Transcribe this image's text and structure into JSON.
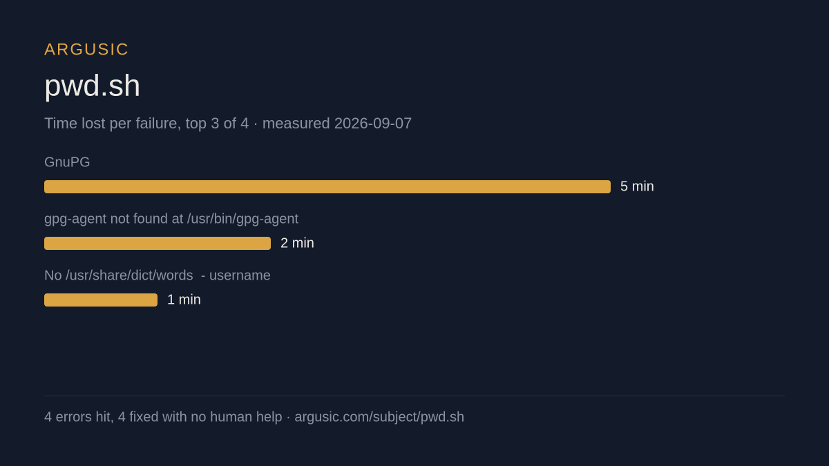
{
  "brand": "ARGUSIC",
  "chart_data": {
    "type": "bar",
    "orientation": "horizontal",
    "title": "pwd.sh",
    "subtitle": "Time lost per failure, top 3 of 4 · measured 2026-09-07",
    "categories": [
      "GnuPG",
      "gpg-agent not found at /usr/bin/gpg-agent",
      "No /usr/share/dict/words  - username"
    ],
    "values": [
      5,
      2,
      1
    ],
    "value_labels": [
      "5 min",
      "2 min",
      "1 min"
    ],
    "color": "#dca544"
  },
  "footer": "4 errors hit, 4 fixed with no human help · argusic.com/subject/pwd.sh"
}
